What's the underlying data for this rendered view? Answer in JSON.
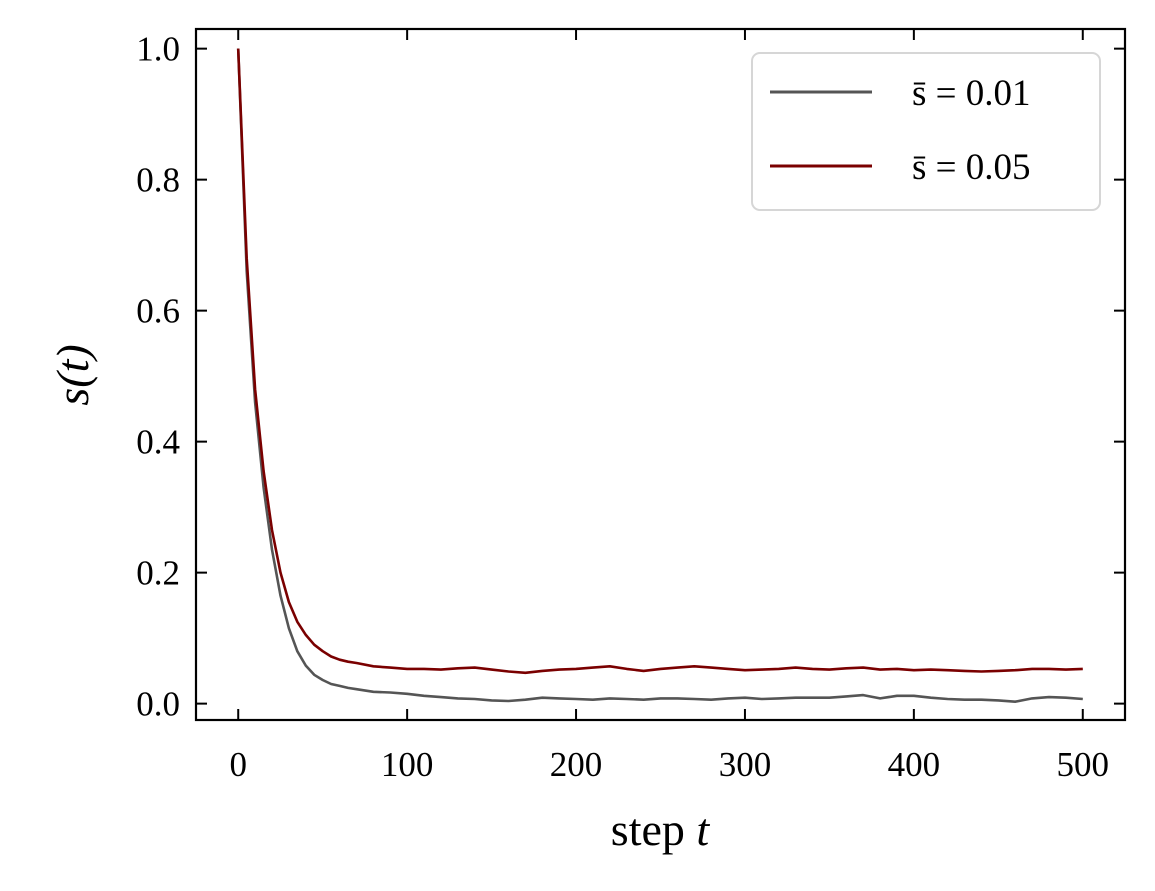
{
  "chart_data": {
    "type": "line",
    "title": "",
    "xlabel_text": "step",
    "xlabel_var": "t",
    "ylabel": "s(t)",
    "xlim": [
      -25,
      525
    ],
    "ylim": [
      -0.025,
      1.03
    ],
    "xticks": [
      0,
      100,
      200,
      300,
      400,
      500
    ],
    "xtick_labels": [
      "0",
      "100",
      "200",
      "300",
      "400",
      "500"
    ],
    "yticks": [
      0.0,
      0.2,
      0.4,
      0.6,
      0.8,
      1.0
    ],
    "ytick_labels": [
      "0.0",
      "0.2",
      "0.4",
      "0.6",
      "0.8",
      "1.0"
    ],
    "grid": false,
    "legend_position": "top-right",
    "series": [
      {
        "name": "s̄ = 0.01",
        "color": "#555555",
        "points": [
          [
            0,
            1.0
          ],
          [
            5,
            0.66
          ],
          [
            10,
            0.46
          ],
          [
            15,
            0.33
          ],
          [
            20,
            0.235
          ],
          [
            25,
            0.165
          ],
          [
            30,
            0.115
          ],
          [
            35,
            0.08
          ],
          [
            40,
            0.058
          ],
          [
            45,
            0.044
          ],
          [
            50,
            0.036
          ],
          [
            55,
            0.03
          ],
          [
            60,
            0.027
          ],
          [
            65,
            0.024
          ],
          [
            70,
            0.022
          ],
          [
            80,
            0.018
          ],
          [
            90,
            0.017
          ],
          [
            100,
            0.015
          ],
          [
            110,
            0.012
          ],
          [
            120,
            0.01
          ],
          [
            130,
            0.008
          ],
          [
            140,
            0.007
          ],
          [
            150,
            0.005
          ],
          [
            160,
            0.004
          ],
          [
            170,
            0.006
          ],
          [
            180,
            0.009
          ],
          [
            190,
            0.008
          ],
          [
            200,
            0.007
          ],
          [
            210,
            0.006
          ],
          [
            220,
            0.008
          ],
          [
            230,
            0.007
          ],
          [
            240,
            0.006
          ],
          [
            250,
            0.008
          ],
          [
            260,
            0.008
          ],
          [
            270,
            0.007
          ],
          [
            280,
            0.006
          ],
          [
            290,
            0.008
          ],
          [
            300,
            0.009
          ],
          [
            310,
            0.007
          ],
          [
            320,
            0.008
          ],
          [
            330,
            0.009
          ],
          [
            340,
            0.009
          ],
          [
            350,
            0.009
          ],
          [
            360,
            0.011
          ],
          [
            370,
            0.013
          ],
          [
            380,
            0.008
          ],
          [
            390,
            0.012
          ],
          [
            400,
            0.012
          ],
          [
            410,
            0.009
          ],
          [
            420,
            0.007
          ],
          [
            430,
            0.006
          ],
          [
            440,
            0.006
          ],
          [
            450,
            0.005
          ],
          [
            460,
            0.003
          ],
          [
            470,
            0.008
          ],
          [
            480,
            0.01
          ],
          [
            490,
            0.009
          ],
          [
            500,
            0.007
          ]
        ]
      },
      {
        "name": "s̄ = 0.05",
        "color": "#7a0000",
        "points": [
          [
            0,
            1.0
          ],
          [
            5,
            0.68
          ],
          [
            10,
            0.48
          ],
          [
            15,
            0.355
          ],
          [
            20,
            0.265
          ],
          [
            25,
            0.2
          ],
          [
            30,
            0.155
          ],
          [
            35,
            0.125
          ],
          [
            40,
            0.105
          ],
          [
            45,
            0.09
          ],
          [
            50,
            0.08
          ],
          [
            55,
            0.072
          ],
          [
            60,
            0.067
          ],
          [
            65,
            0.064
          ],
          [
            70,
            0.062
          ],
          [
            80,
            0.057
          ],
          [
            90,
            0.055
          ],
          [
            100,
            0.053
          ],
          [
            110,
            0.053
          ],
          [
            120,
            0.052
          ],
          [
            130,
            0.054
          ],
          [
            140,
            0.055
          ],
          [
            150,
            0.052
          ],
          [
            160,
            0.049
          ],
          [
            170,
            0.047
          ],
          [
            180,
            0.05
          ],
          [
            190,
            0.052
          ],
          [
            200,
            0.053
          ],
          [
            210,
            0.055
          ],
          [
            220,
            0.057
          ],
          [
            230,
            0.053
          ],
          [
            240,
            0.05
          ],
          [
            250,
            0.053
          ],
          [
            260,
            0.055
          ],
          [
            270,
            0.057
          ],
          [
            280,
            0.055
          ],
          [
            290,
            0.053
          ],
          [
            300,
            0.051
          ],
          [
            310,
            0.052
          ],
          [
            320,
            0.053
          ],
          [
            330,
            0.055
          ],
          [
            340,
            0.053
          ],
          [
            350,
            0.052
          ],
          [
            360,
            0.054
          ],
          [
            370,
            0.055
          ],
          [
            380,
            0.052
          ],
          [
            390,
            0.053
          ],
          [
            400,
            0.051
          ],
          [
            410,
            0.052
          ],
          [
            420,
            0.051
          ],
          [
            430,
            0.05
          ],
          [
            440,
            0.049
          ],
          [
            450,
            0.05
          ],
          [
            460,
            0.051
          ],
          [
            470,
            0.053
          ],
          [
            480,
            0.053
          ],
          [
            490,
            0.052
          ],
          [
            500,
            0.053
          ]
        ]
      }
    ]
  }
}
